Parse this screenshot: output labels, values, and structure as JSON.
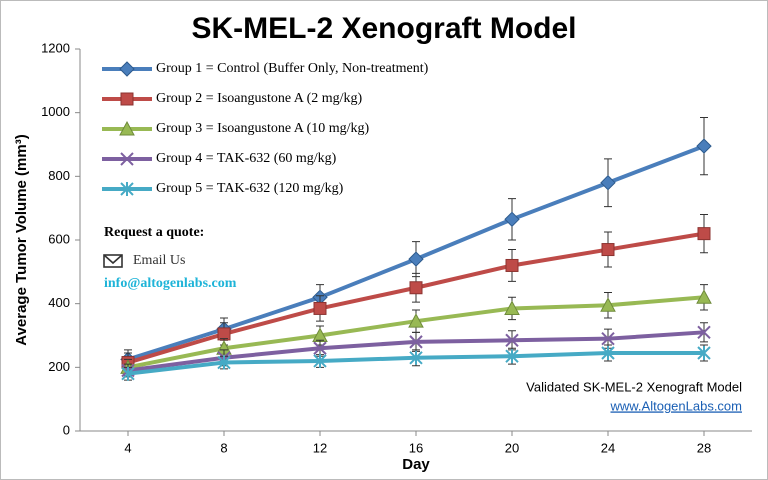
{
  "chart_data": {
    "type": "line",
    "title": "SK-MEL-2 Xenograft Model",
    "x_label": "Day",
    "y_label": "Average Tumor Volume (mm³)",
    "x": [
      4,
      8,
      12,
      16,
      20,
      24,
      28
    ],
    "xlim": [
      2,
      30
    ],
    "xticks": [
      4,
      8,
      12,
      16,
      20,
      24,
      28
    ],
    "ylim": [
      0,
      1200
    ],
    "yticks": [
      0,
      200,
      400,
      600,
      800,
      1000,
      1200
    ],
    "legend": "upper left",
    "series": [
      {
        "name": "Group 1 = Control (Buffer Only, Non-treatment)",
        "color": "#4a7ebb",
        "marker": "diamond",
        "values": [
          225,
          320,
          420,
          540,
          665,
          780,
          895
        ],
        "errors": [
          30,
          35,
          40,
          55,
          65,
          75,
          90
        ]
      },
      {
        "name": "Group 2 = Isoangustone A (2 mg/kg)",
        "color": "#be4b48",
        "marker": "square",
        "values": [
          215,
          305,
          385,
          450,
          520,
          570,
          620
        ],
        "errors": [
          30,
          35,
          40,
          45,
          50,
          55,
          60
        ]
      },
      {
        "name": "Group 3 = Isoangustone A (10 mg/kg)",
        "color": "#98b954",
        "marker": "triangle",
        "values": [
          200,
          260,
          300,
          345,
          385,
          395,
          420
        ],
        "errors": [
          25,
          30,
          30,
          35,
          35,
          40,
          40
        ]
      },
      {
        "name": "Group 4 = TAK-632 (60 mg/kg)",
        "color": "#7d60a0",
        "marker": "x",
        "values": [
          190,
          230,
          260,
          280,
          285,
          290,
          310
        ],
        "errors": [
          20,
          25,
          25,
          30,
          30,
          30,
          30
        ]
      },
      {
        "name": "Group 5 = TAK-632 (120 mg/kg)",
        "color": "#46aac5",
        "marker": "star",
        "values": [
          180,
          215,
          220,
          230,
          235,
          245,
          245
        ],
        "errors": [
          20,
          20,
          20,
          25,
          25,
          25,
          25
        ]
      }
    ],
    "annotations": [
      "Request a quote:",
      "Email Us",
      "info@altogenlabs.com",
      "Validated SK-MEL-2 Xenograft Model",
      "www.AltogenLabs.com"
    ]
  }
}
